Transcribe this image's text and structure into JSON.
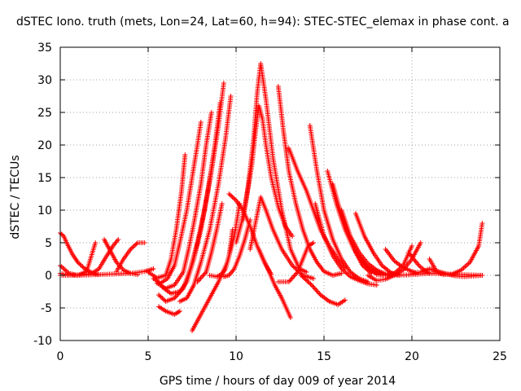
{
  "chart_data": {
    "type": "scatter",
    "title": "dSTEC Iono. truth (mets, Lon=24, Lat=60, h=94): STEC-STEC_elemax in phase cont. a",
    "xlabel": "GPS time / hours of day 009 of year 2014",
    "ylabel": "dSTEC  / TECUs",
    "xlim": [
      0,
      25
    ],
    "ylim": [
      -10,
      35
    ],
    "xticks": [
      0,
      5,
      10,
      15,
      20,
      25
    ],
    "yticks": [
      -10,
      -5,
      0,
      5,
      10,
      15,
      20,
      25,
      30,
      35
    ],
    "grid": true,
    "color": "#ff0000",
    "series": [
      {
        "x": [
          0.0,
          0.2,
          0.4,
          0.7,
          1.0,
          1.4,
          1.8,
          2.2
        ],
        "y": [
          6.5,
          6.0,
          4.8,
          3.2,
          2.0,
          1.0,
          0.4,
          0.1
        ]
      },
      {
        "x": [
          0.0,
          0.5,
          1.0,
          1.5,
          2.0
        ],
        "y": [
          1.5,
          0.3,
          0.0,
          0.6,
          5.0
        ]
      },
      {
        "x": [
          0.0,
          0.6,
          1.2,
          1.8,
          2.2,
          2.6,
          3.0,
          3.3
        ],
        "y": [
          0.3,
          0.0,
          0.1,
          0.3,
          1.0,
          2.8,
          4.5,
          5.5
        ]
      },
      {
        "x": [
          2.5,
          2.8,
          3.2,
          3.6,
          4.0,
          4.4
        ],
        "y": [
          5.5,
          4.0,
          2.0,
          0.8,
          0.3,
          0.1
        ]
      },
      {
        "x": [
          3.2,
          3.6,
          4.0,
          4.4,
          4.8
        ],
        "y": [
          0.6,
          2.5,
          4.0,
          5.0,
          5.0
        ]
      },
      {
        "x": [
          0.0,
          1.0,
          2.0,
          3.0,
          4.0,
          4.8,
          5.3
        ],
        "y": [
          0.0,
          0.0,
          0.1,
          0.2,
          0.3,
          0.6,
          1.0
        ]
      },
      {
        "x": [
          5.0,
          5.5,
          6.0,
          6.3,
          6.6,
          6.9,
          7.1
        ],
        "y": [
          0.5,
          -0.4,
          0.0,
          2.5,
          7.0,
          13.0,
          18.5
        ]
      },
      {
        "x": [
          5.3,
          5.7,
          6.1,
          6.5,
          6.8,
          7.2,
          7.5,
          7.8,
          8.0
        ],
        "y": [
          -0.5,
          -1.2,
          -0.5,
          1.5,
          5.0,
          10.0,
          15.0,
          20.0,
          23.5
        ]
      },
      {
        "x": [
          5.5,
          6.0,
          6.5,
          7.0,
          7.3,
          7.6,
          8.0,
          8.3,
          8.6
        ],
        "y": [
          -1.2,
          -2.0,
          -1.5,
          0.5,
          4.0,
          8.0,
          14.0,
          20.0,
          25.0
        ]
      },
      {
        "x": [
          5.8,
          6.3,
          6.8,
          7.2,
          7.6,
          8.0,
          8.4,
          8.8,
          9.1
        ],
        "y": [
          -1.8,
          -2.8,
          -2.5,
          -1.0,
          2.5,
          7.0,
          13.0,
          20.0,
          26.5
        ]
      },
      {
        "x": [
          5.6,
          6.0,
          6.5,
          7.0,
          7.4,
          7.8,
          8.2,
          8.6,
          9.0,
          9.3
        ],
        "y": [
          -3.0,
          -4.0,
          -3.5,
          -2.0,
          1.0,
          5.0,
          10.0,
          16.0,
          23.0,
          29.5
        ]
      },
      {
        "x": [
          5.6,
          6.0,
          6.5,
          6.8
        ],
        "y": [
          -4.8,
          -5.5,
          -6.0,
          -5.5
        ]
      },
      {
        "x": [
          6.8,
          7.2,
          7.6,
          8.0,
          8.5,
          9.0,
          9.4,
          9.7
        ],
        "y": [
          -4.0,
          -3.5,
          -1.5,
          2.0,
          7.0,
          14.0,
          21.0,
          27.5
        ]
      },
      {
        "x": [
          7.5,
          8.0,
          8.5,
          9.0,
          9.5,
          9.9,
          10.2
        ],
        "y": [
          -8.5,
          -6.0,
          -3.5,
          -1.0,
          2.0,
          6.0,
          11.0
        ]
      },
      {
        "x": [
          7.8,
          8.3,
          8.6,
          8.9,
          9.2
        ],
        "y": [
          -1.0,
          0.5,
          3.5,
          7.0,
          11.0
        ]
      },
      {
        "x": [
          8.5,
          8.9,
          9.2,
          9.4,
          9.6,
          9.8
        ],
        "y": [
          0.0,
          -0.2,
          0.2,
          1.0,
          3.0,
          7.0
        ]
      },
      {
        "x": [
          9.3,
          9.6,
          9.9,
          10.2,
          10.5,
          10.8
        ],
        "y": [
          -0.2,
          0.0,
          1.0,
          3.0,
          5.5,
          8.5
        ]
      },
      {
        "x": [
          9.6,
          10.0,
          10.4,
          10.8,
          11.2,
          11.6,
          12.0
        ],
        "y": [
          12.5,
          11.5,
          10.0,
          7.5,
          4.5,
          2.0,
          0.2
        ]
      },
      {
        "x": [
          10.0,
          10.3,
          10.6,
          10.9,
          11.1,
          11.3,
          11.5,
          11.7,
          12.0,
          12.4,
          12.8,
          13.2
        ],
        "y": [
          5.0,
          8.0,
          12.0,
          17.0,
          22.0,
          26.0,
          24.0,
          20.0,
          15.0,
          10.5,
          7.5,
          6.0
        ]
      },
      {
        "x": [
          10.4,
          10.7,
          11.0,
          11.2,
          11.4,
          11.7,
          12.1,
          12.6,
          13.1,
          13.6,
          14.0
        ],
        "y": [
          8.5,
          14.0,
          21.0,
          28.0,
          32.5,
          27.0,
          18.0,
          10.0,
          4.0,
          1.0,
          0.5
        ]
      },
      {
        "x": [
          10.8,
          11.1,
          11.4,
          11.7,
          12.1,
          12.6,
          13.2,
          13.8,
          14.4
        ],
        "y": [
          4.0,
          8.0,
          12.0,
          10.0,
          7.0,
          4.0,
          1.5,
          0.0,
          -0.5
        ]
      },
      {
        "x": [
          12.4,
          12.7,
          13.0,
          13.4,
          13.8,
          14.2,
          14.6,
          15.0,
          15.5,
          16.0
        ],
        "y": [
          29.0,
          22.0,
          16.0,
          11.0,
          7.0,
          4.0,
          2.0,
          0.6,
          0.0,
          0.3
        ]
      },
      {
        "x": [
          11.3,
          11.8,
          12.2,
          12.6,
          13.1
        ],
        "y": [
          4.0,
          1.0,
          -1.5,
          -3.5,
          -6.5
        ]
      },
      {
        "x": [
          12.4,
          13.0,
          13.5,
          13.8,
          14.1,
          14.4
        ],
        "y": [
          -1.0,
          -1.0,
          0.5,
          2.5,
          4.5,
          5.0
        ]
      },
      {
        "x": [
          13.0,
          13.5,
          14.0,
          14.4,
          14.8,
          15.3,
          15.8,
          16.2
        ],
        "y": [
          19.5,
          16.0,
          13.0,
          10.0,
          7.0,
          4.5,
          2.5,
          1.0
        ]
      },
      {
        "x": [
          14.2,
          14.6,
          15.0,
          15.5,
          16.0,
          16.5,
          17.0,
          17.5
        ],
        "y": [
          23.0,
          16.0,
          10.0,
          5.5,
          2.5,
          0.5,
          -0.5,
          -1.0
        ]
      },
      {
        "x": [
          14.5,
          15.0,
          15.5,
          16.0,
          16.5,
          17.0,
          17.5,
          18.0
        ],
        "y": [
          11.0,
          6.0,
          3.0,
          1.0,
          -0.2,
          -0.8,
          -1.3,
          -1.5
        ]
      },
      {
        "x": [
          13.7,
          14.3,
          14.8,
          15.3,
          15.8,
          16.2
        ],
        "y": [
          0.0,
          -1.5,
          -3.0,
          -4.0,
          -4.5,
          -3.8
        ]
      },
      {
        "x": [
          15.2,
          15.7,
          16.2,
          16.7,
          17.2,
          17.7,
          18.3
        ],
        "y": [
          16.0,
          11.0,
          7.0,
          4.0,
          2.0,
          0.8,
          0.2
        ]
      },
      {
        "x": [
          15.5,
          15.8,
          16.1,
          16.4,
          16.8,
          17.2,
          17.7
        ],
        "y": [
          14.0,
          11.0,
          8.5,
          6.0,
          3.5,
          1.5,
          0.3
        ]
      },
      {
        "x": [
          16.0,
          16.5,
          17.0,
          17.5,
          18.0,
          18.5,
          19.0
        ],
        "y": [
          10.0,
          6.0,
          3.5,
          1.8,
          0.8,
          0.2,
          0.0
        ]
      },
      {
        "x": [
          16.8,
          17.3,
          17.8,
          18.3,
          18.8,
          19.3
        ],
        "y": [
          9.5,
          6.0,
          3.5,
          1.5,
          0.4,
          0.0
        ]
      },
      {
        "x": [
          17.0,
          17.5,
          18.0,
          18.5,
          19.0,
          19.5,
          20.0
        ],
        "y": [
          3.0,
          1.0,
          0.2,
          0.0,
          0.3,
          1.5,
          4.5
        ]
      },
      {
        "x": [
          17.5,
          18.0,
          18.5,
          19.0,
          19.5,
          20.0,
          20.5
        ],
        "y": [
          0.0,
          -0.8,
          -0.6,
          0.0,
          0.8,
          2.5,
          5.0
        ]
      },
      {
        "x": [
          18.5,
          19.0,
          19.5,
          20.0,
          20.3
        ],
        "y": [
          4.0,
          2.2,
          1.2,
          0.6,
          0.3
        ]
      },
      {
        "x": [
          19.8,
          20.1,
          20.4,
          20.7,
          21.0
        ],
        "y": [
          3.5,
          2.5,
          1.5,
          0.8,
          0.3
        ]
      },
      {
        "x": [
          21.0,
          21.4,
          21.8,
          22.3,
          22.8,
          23.3,
          23.8,
          24.0
        ],
        "y": [
          2.5,
          0.6,
          0.1,
          0.2,
          0.8,
          2.0,
          4.5,
          8.0
        ]
      },
      {
        "x": [
          18.0,
          19.0,
          20.0,
          21.0,
          22.0,
          23.0,
          24.0
        ],
        "y": [
          0.1,
          0.0,
          0.1,
          0.3,
          0.2,
          0.1,
          0.0
        ]
      },
      {
        "x": [
          20.0,
          20.5,
          21.0,
          21.5,
          22.0,
          22.5,
          23.0,
          23.5,
          24.0
        ],
        "y": [
          0.3,
          0.5,
          1.0,
          0.6,
          0.2,
          -0.1,
          -0.2,
          -0.1,
          0.0
        ]
      }
    ]
  }
}
